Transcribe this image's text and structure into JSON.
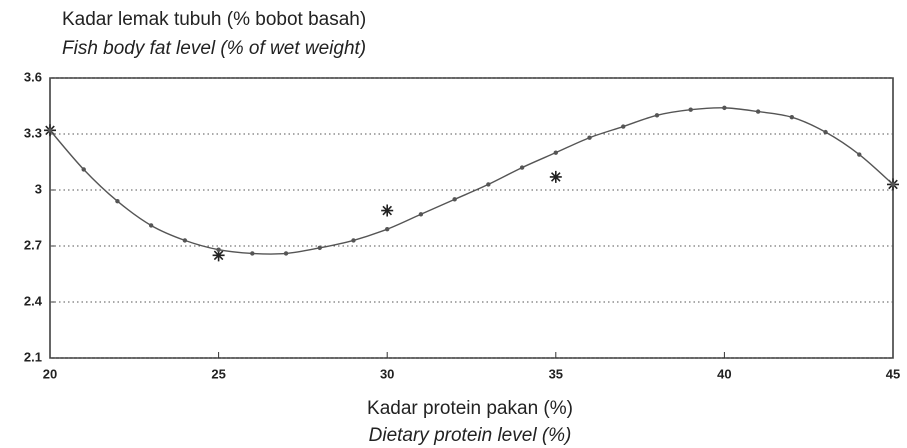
{
  "chart_data": {
    "type": "scatter",
    "title": "Kadar lemak tubuh (% bobot basah)",
    "subtitle": "Fish body fat level (% of wet weight)",
    "x_label": "Kadar protein pakan (%)",
    "x_label_sub": "Dietary protein level (%)",
    "xlim": [
      20,
      45
    ],
    "xticks": [
      20,
      25,
      30,
      35,
      40,
      45
    ],
    "ylim": [
      2.1,
      3.6
    ],
    "yticks": [
      2.1,
      2.4,
      2.7,
      3,
      3.3,
      3.6
    ],
    "grid": true,
    "series": [
      {
        "marker": "star",
        "color": "#222222",
        "x": [
          20,
          25,
          30,
          35,
          45
        ],
        "values": [
          3.32,
          2.65,
          2.89,
          3.07,
          3.03
        ]
      },
      {
        "marker": "dot",
        "line": true,
        "color": "#555555",
        "x": [
          20,
          21,
          22,
          23,
          24,
          25,
          26,
          27,
          28,
          29,
          30,
          31,
          32,
          33,
          34,
          35,
          36,
          37,
          38,
          39,
          40,
          41,
          42,
          43,
          44,
          45
        ],
        "values": [
          3.32,
          3.11,
          2.94,
          2.81,
          2.73,
          2.68,
          2.66,
          2.66,
          2.69,
          2.73,
          2.79,
          2.87,
          2.95,
          3.03,
          3.12,
          3.2,
          3.28,
          3.34,
          3.4,
          3.43,
          3.44,
          3.42,
          3.39,
          3.31,
          3.19,
          3.03
        ]
      }
    ]
  }
}
